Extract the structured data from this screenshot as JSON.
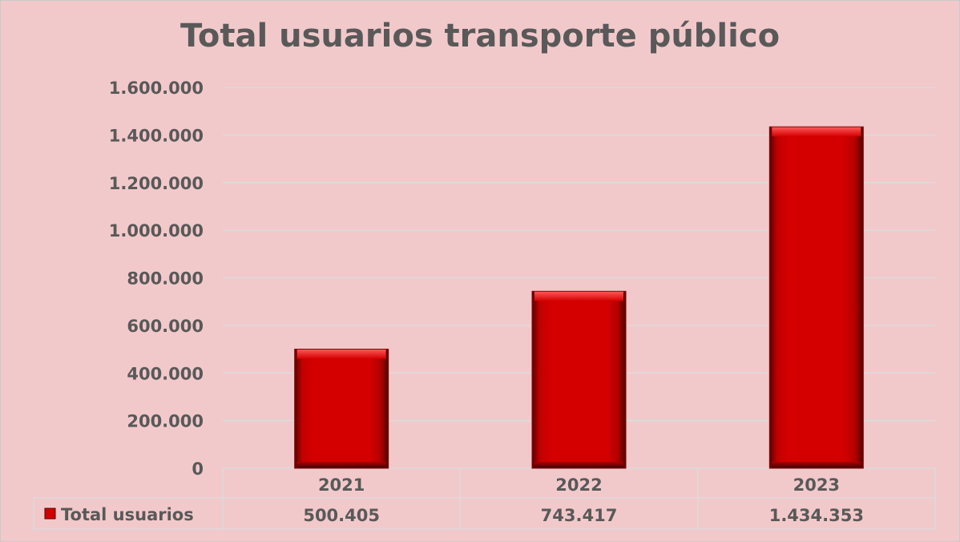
{
  "chart_data": {
    "type": "bar",
    "title": "Total usuarios transporte público",
    "categories": [
      "2021",
      "2022",
      "2023"
    ],
    "series": [
      {
        "name": "Total usuarios",
        "values": [
          500405,
          743417,
          1434353
        ],
        "color": "#d00000"
      }
    ],
    "data_table_values": [
      "500.405",
      "743.417",
      "1.434.353"
    ],
    "ylim": [
      0,
      1600000
    ],
    "y_ticks": [
      0,
      200000,
      400000,
      600000,
      800000,
      1000000,
      1200000,
      1400000,
      1600000
    ],
    "y_tick_labels": [
      "0",
      "200.000",
      "400.000",
      "600.000",
      "800.000",
      "1.000.000",
      "1.200.000",
      "1.400.000",
      "1.600.000"
    ],
    "grid": true,
    "legend_position": "data-table"
  }
}
